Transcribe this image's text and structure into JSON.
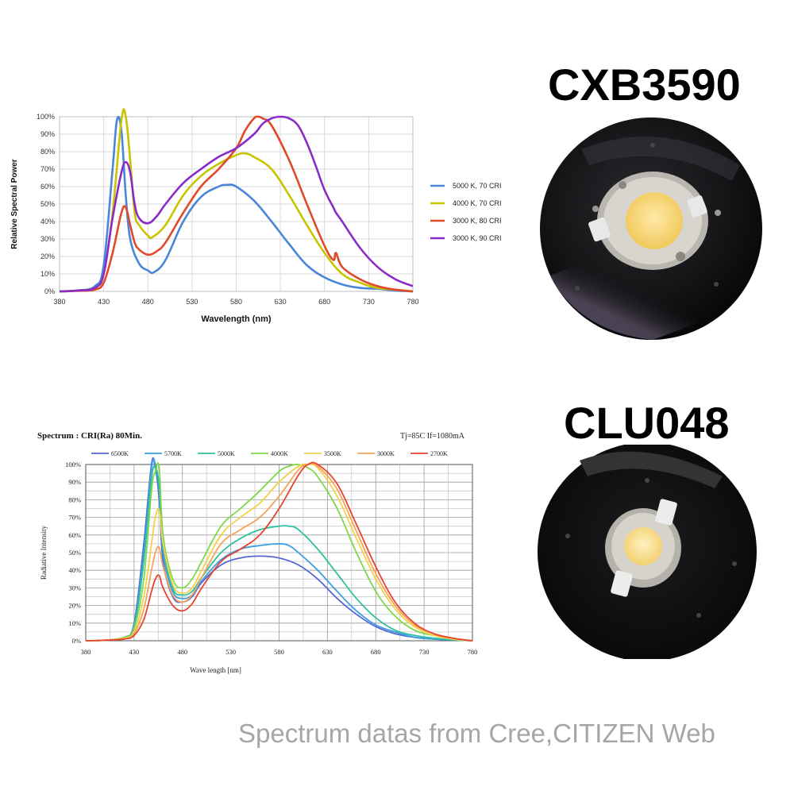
{
  "product1": {
    "name": "CXB3590"
  },
  "product2": {
    "name": "CLU048"
  },
  "footer": {
    "text": "Spectrum datas from Cree,CITIZEN Web"
  },
  "colors": {
    "blue": "#4a86d8",
    "yellow": "#c9c400",
    "red": "#e04a2a",
    "purple": "#8a2bc9",
    "c6500": "#5566d6",
    "c5700": "#3a9ee0",
    "c5000": "#2fc0a0",
    "c4000": "#7ed84a",
    "c3500": "#f2d24a",
    "c3000": "#f5a45a",
    "c2700": "#e8432e"
  },
  "chart_data": [
    {
      "type": "line",
      "title": "",
      "xlabel": "Wavelength (nm)",
      "ylabel": "Relative Spectral Power",
      "xlim": [
        380,
        780
      ],
      "ylim": [
        0,
        100
      ],
      "x_ticks": [
        "380",
        "430",
        "480",
        "530",
        "580",
        "630",
        "680",
        "730",
        "780"
      ],
      "y_ticks": [
        "0%",
        "10%",
        "20%",
        "30%",
        "40%",
        "50%",
        "60%",
        "70%",
        "80%",
        "90%",
        "100%"
      ],
      "legend_position": "right",
      "grid": true,
      "series": [
        {
          "name": "5000 K, 70 CRI",
          "color": "#4a86d8",
          "x": [
            380,
            400,
            420,
            430,
            440,
            445,
            450,
            455,
            460,
            470,
            480,
            487,
            500,
            520,
            540,
            560,
            570,
            580,
            600,
            620,
            640,
            660,
            680,
            700,
            720,
            740,
            760,
            780
          ],
          "y": [
            0,
            0.5,
            3,
            15,
            70,
            98,
            92,
            55,
            30,
            16,
            12,
            11,
            18,
            40,
            54,
            60,
            61,
            60,
            52,
            40,
            27,
            15,
            8,
            4,
            2,
            1.5,
            0.5,
            0
          ]
        },
        {
          "name": "4000 K, 70 CRI",
          "color": "#c9c400",
          "x": [
            380,
            400,
            420,
            430,
            440,
            450,
            455,
            460,
            465,
            470,
            480,
            485,
            500,
            520,
            540,
            560,
            580,
            590,
            600,
            620,
            640,
            660,
            680,
            700,
            720,
            740,
            760,
            780
          ],
          "y": [
            0,
            0.5,
            2,
            10,
            45,
            98,
            100,
            75,
            45,
            38,
            32,
            31,
            38,
            55,
            66,
            73,
            78,
            79,
            77,
            70,
            55,
            38,
            22,
            10,
            5,
            2,
            1,
            0
          ]
        },
        {
          "name": "3000 K, 80 CRI",
          "color": "#e04a2a",
          "x": [
            380,
            400,
            420,
            430,
            440,
            450,
            455,
            460,
            465,
            470,
            480,
            490,
            500,
            520,
            540,
            560,
            580,
            590,
            600,
            605,
            610,
            620,
            640,
            660,
            680,
            690,
            693,
            700,
            720,
            740,
            760,
            780
          ],
          "y": [
            0,
            0.3,
            1,
            5,
            22,
            45,
            48,
            38,
            28,
            24,
            21,
            23,
            28,
            45,
            60,
            70,
            82,
            92,
            99,
            100,
            99,
            95,
            75,
            50,
            26,
            18,
            22,
            14,
            7,
            3,
            1,
            0
          ]
        },
        {
          "name": "3000 K, 90 CRI",
          "color": "#8a2bc9",
          "x": [
            380,
            400,
            420,
            430,
            440,
            450,
            455,
            460,
            465,
            470,
            480,
            490,
            500,
            520,
            540,
            560,
            580,
            600,
            610,
            620,
            630,
            640,
            650,
            660,
            670,
            680,
            690,
            693,
            700,
            720,
            740,
            760,
            780
          ],
          "y": [
            0,
            0.5,
            2,
            10,
            42,
            68,
            74,
            68,
            50,
            42,
            39,
            43,
            50,
            62,
            70,
            77,
            82,
            90,
            96,
            99,
            100,
            99,
            95,
            85,
            72,
            58,
            48,
            45,
            40,
            25,
            14,
            7,
            3
          ]
        }
      ]
    },
    {
      "type": "line",
      "title": "Spectrum : CRI(Ra) 80Min.",
      "conditions": "Tj=85C    If=1080mA",
      "xlabel": "Wave length [nm]",
      "ylabel": "Radiative Intensity",
      "xlim": [
        380,
        780
      ],
      "ylim": [
        0,
        100
      ],
      "x_ticks": [
        "380",
        "430",
        "480",
        "530",
        "580",
        "630",
        "680",
        "730",
        "780"
      ],
      "y_ticks": [
        "0%",
        "10%",
        "20%",
        "30%",
        "40%",
        "50%",
        "60%",
        "70%",
        "80%",
        "90%",
        "100%"
      ],
      "legend_position": "top",
      "grid": true,
      "series": [
        {
          "name": "6500K",
          "color": "#5566d6",
          "x": [
            380,
            400,
            420,
            430,
            440,
            448,
            452,
            456,
            460,
            470,
            480,
            490,
            500,
            520,
            540,
            560,
            580,
            600,
            620,
            640,
            660,
            680,
            700,
            720,
            740,
            760,
            780
          ],
          "y": [
            0,
            0.3,
            2,
            10,
            55,
            100,
            98,
            80,
            45,
            25,
            22,
            25,
            33,
            43,
            47,
            48,
            47,
            43,
            35,
            24,
            15,
            8,
            4,
            2,
            1,
            0.5,
            0
          ]
        },
        {
          "name": "5700K",
          "color": "#3a9ee0",
          "x": [
            380,
            400,
            420,
            430,
            440,
            448,
            452,
            456,
            460,
            470,
            480,
            490,
            500,
            520,
            540,
            560,
            580,
            590,
            600,
            620,
            640,
            660,
            680,
            700,
            720,
            740,
            760,
            780
          ],
          "y": [
            0,
            0.3,
            2,
            9,
            50,
            98,
            100,
            85,
            50,
            28,
            24,
            26,
            34,
            46,
            52,
            54,
            55,
            54,
            50,
            40,
            28,
            17,
            9,
            5,
            2,
            1,
            0.5,
            0
          ]
        },
        {
          "name": "5000K",
          "color": "#2fc0a0",
          "x": [
            380,
            400,
            420,
            430,
            440,
            448,
            452,
            456,
            460,
            470,
            480,
            490,
            500,
            520,
            540,
            560,
            580,
            590,
            600,
            620,
            640,
            660,
            680,
            700,
            720,
            740,
            760,
            780
          ],
          "y": [
            0,
            0.3,
            2,
            8,
            45,
            92,
            98,
            88,
            55,
            30,
            26,
            28,
            36,
            50,
            58,
            63,
            65,
            65,
            63,
            52,
            38,
            24,
            13,
            6,
            3,
            1.5,
            0.5,
            0
          ]
        },
        {
          "name": "4000K",
          "color": "#7ed84a",
          "x": [
            380,
            400,
            420,
            430,
            440,
            448,
            452,
            456,
            460,
            470,
            480,
            490,
            500,
            520,
            540,
            560,
            580,
            590,
            600,
            610,
            620,
            640,
            660,
            680,
            700,
            720,
            740,
            760,
            780
          ],
          "y": [
            0,
            0.3,
            2,
            7,
            35,
            85,
            96,
            98,
            60,
            35,
            30,
            35,
            45,
            65,
            75,
            85,
            96,
            99,
            100,
            98,
            93,
            75,
            50,
            28,
            14,
            6,
            3,
            1,
            0
          ]
        },
        {
          "name": "3500K",
          "color": "#f2d24a",
          "x": [
            380,
            400,
            420,
            430,
            440,
            448,
            452,
            456,
            460,
            470,
            480,
            490,
            500,
            520,
            540,
            560,
            580,
            600,
            610,
            620,
            640,
            660,
            680,
            700,
            720,
            740,
            760,
            780
          ],
          "y": [
            0,
            0.3,
            1.5,
            5,
            25,
            55,
            70,
            74,
            55,
            32,
            27,
            30,
            40,
            60,
            70,
            78,
            90,
            99,
            100,
            98,
            82,
            58,
            35,
            18,
            8,
            3,
            1,
            0
          ]
        },
        {
          "name": "3000K",
          "color": "#f5a45a",
          "x": [
            380,
            400,
            420,
            430,
            440,
            448,
            452,
            456,
            460,
            470,
            480,
            490,
            500,
            520,
            540,
            560,
            580,
            600,
            610,
            620,
            640,
            660,
            680,
            700,
            720,
            740,
            760,
            780
          ],
          "y": [
            0,
            0.3,
            1,
            4,
            18,
            40,
            50,
            53,
            42,
            26,
            22,
            26,
            36,
            55,
            63,
            70,
            82,
            97,
            100,
            99,
            86,
            62,
            38,
            20,
            9,
            4,
            1.5,
            0
          ]
        },
        {
          "name": "2700K",
          "color": "#e8432e",
          "x": [
            380,
            400,
            420,
            430,
            440,
            448,
            452,
            456,
            460,
            470,
            480,
            490,
            500,
            520,
            540,
            560,
            580,
            600,
            610,
            620,
            640,
            660,
            680,
            700,
            720,
            740,
            760,
            780
          ],
          "y": [
            0,
            0.3,
            1,
            3,
            12,
            28,
            35,
            37,
            30,
            20,
            17,
            21,
            30,
            45,
            52,
            60,
            75,
            94,
            100,
            100,
            89,
            66,
            42,
            22,
            10,
            4,
            1.5,
            0
          ]
        }
      ]
    }
  ]
}
